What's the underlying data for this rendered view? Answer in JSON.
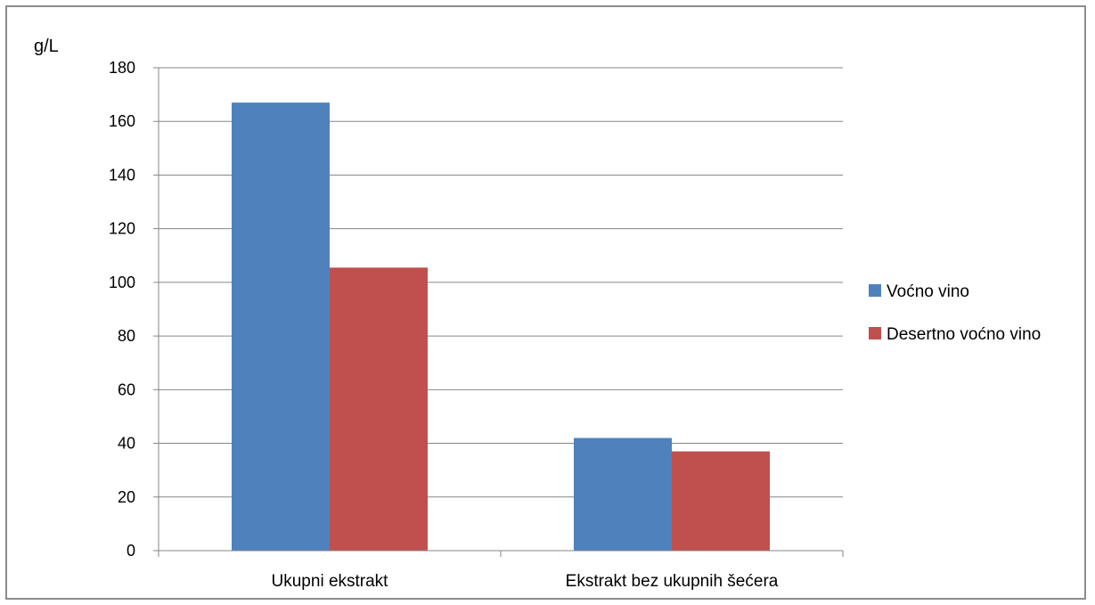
{
  "chart_data": {
    "type": "bar",
    "ylabel": "g/L",
    "ylim": [
      0,
      180
    ],
    "ytick_step": 20,
    "yticks": [
      "0",
      "20",
      "40",
      "60",
      "80",
      "100",
      "120",
      "140",
      "160",
      "180"
    ],
    "grid": true,
    "legend_position": "right",
    "categories": [
      "Ukupni ekstrakt",
      "Ekstrakt bez ukupnih šećera"
    ],
    "series": [
      {
        "name": "Voćno vino",
        "color": "#4f81bd",
        "values": [
          167,
          42
        ]
      },
      {
        "name": "Desertno voćno vino",
        "color": "#c0504d",
        "values": [
          105.5,
          37
        ]
      }
    ]
  }
}
